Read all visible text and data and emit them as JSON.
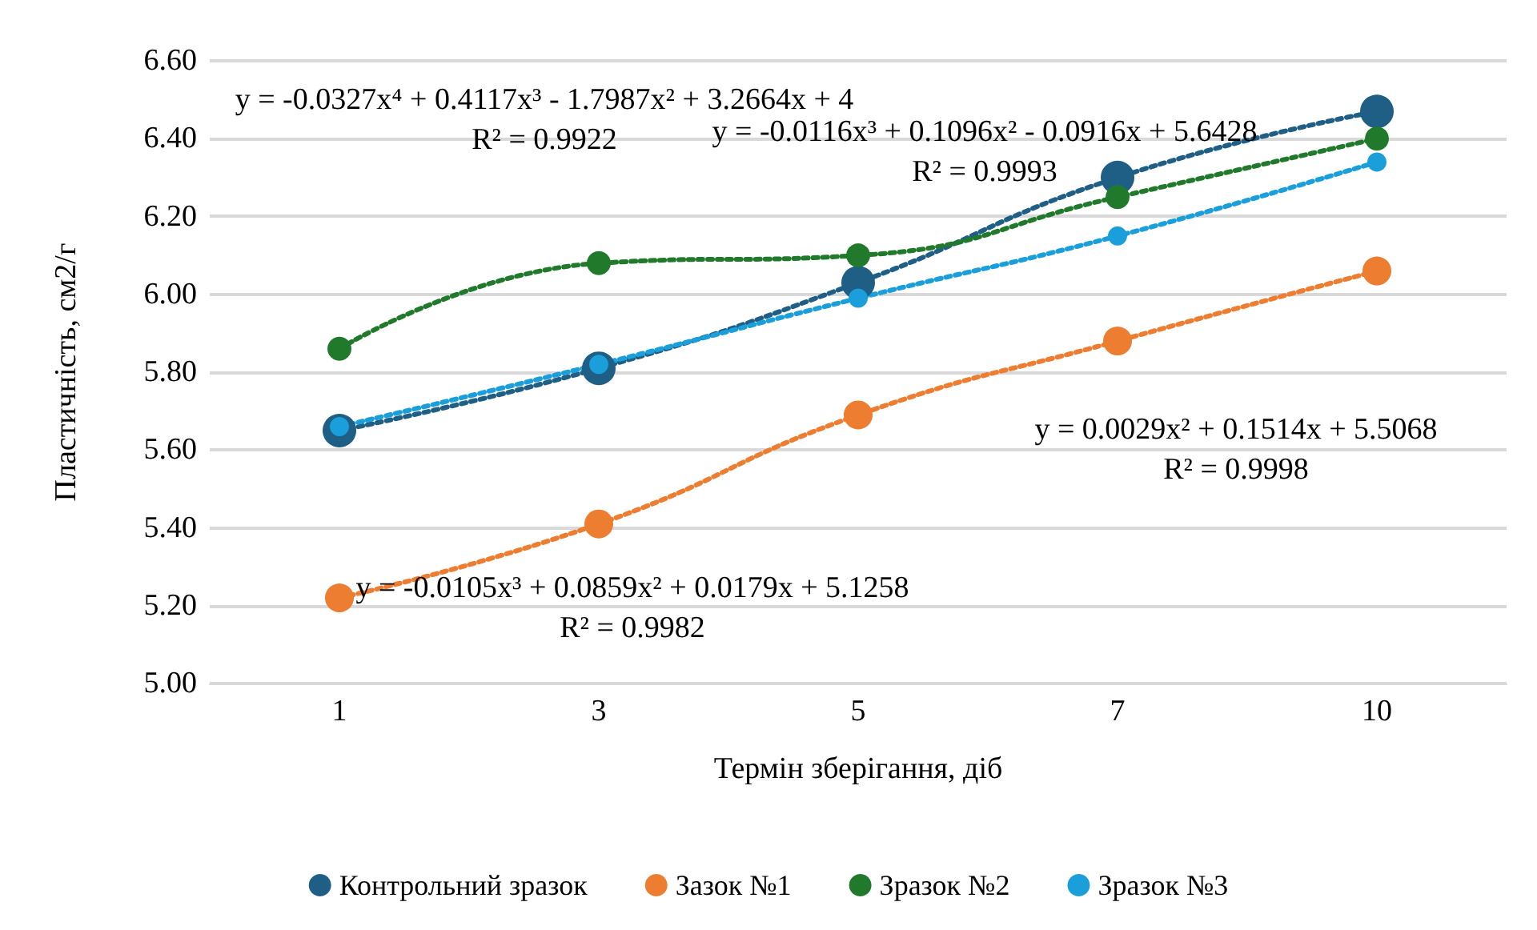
{
  "chart_data": {
    "type": "line",
    "xlabel": "Термін зберігання, діб",
    "ylabel": "Пластичність, см2/г",
    "categories": [
      "1",
      "3",
      "5",
      "7",
      "10"
    ],
    "series": [
      {
        "name": "Контрольний зразок",
        "color": "#1f5f86",
        "values": [
          5.65,
          5.81,
          6.03,
          6.3,
          6.47
        ]
      },
      {
        "name": "Зазок №1",
        "color": "#ed7d31",
        "values": [
          5.22,
          5.41,
          5.69,
          5.88,
          6.06
        ]
      },
      {
        "name": "Зразок №2",
        "color": "#217a2b",
        "values": [
          5.86,
          6.08,
          6.1,
          6.25,
          6.4
        ]
      },
      {
        "name": "Зразок №3",
        "color": "#1a9fda",
        "values": [
          5.66,
          5.82,
          5.99,
          6.15,
          6.34
        ]
      }
    ],
    "ylim": [
      5.0,
      6.6
    ],
    "yticks": [
      {
        "value": 5.0,
        "label": "5.00"
      },
      {
        "value": 5.2,
        "label": "5.20"
      },
      {
        "value": 5.4,
        "label": "5.40"
      },
      {
        "value": 5.6,
        "label": "5.60"
      },
      {
        "value": 5.8,
        "label": "5.80"
      },
      {
        "value": 6.0,
        "label": "6.00"
      },
      {
        "value": 6.2,
        "label": "6.20"
      },
      {
        "value": 6.4,
        "label": "6.40"
      },
      {
        "value": 6.6,
        "label": "6.60"
      }
    ],
    "grid": "y",
    "legend": "bottom",
    "marker": "circle",
    "line_style": "dotted",
    "annotations": [
      "y = -0.0327x⁴ + 0.4117x³ - 1.7987x² + 3.2664x + 4\nR² = 0.9922",
      "y = -0.0116x³ + 0.1096x² - 0.0916x + 5.6428\nR² = 0.9993",
      "y = 0.0029x² + 0.1514x + 5.5068\nR² = 0.9998",
      "y = -0.0105x³ + 0.0859x² + 0.0179x + 5.1258\nR² = 0.9982"
    ]
  }
}
